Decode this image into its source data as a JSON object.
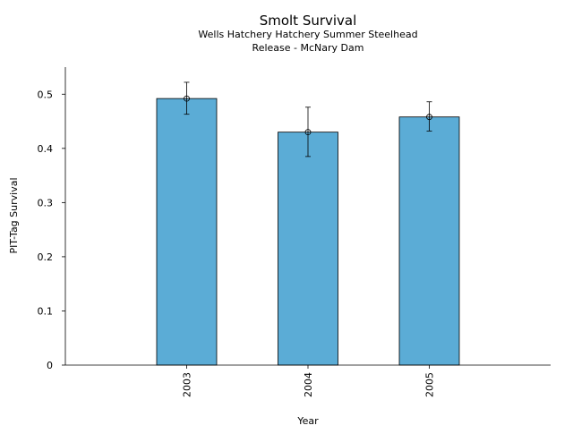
{
  "chart_data": {
    "type": "bar",
    "title": "Smolt Survival",
    "subtitle_lines": [
      "Wells Hatchery Hatchery Summer Steelhead",
      "Release - McNary Dam"
    ],
    "xlabel": "Year",
    "ylabel": "PIT-Tag Survival",
    "categories": [
      "2003",
      "2004",
      "2005"
    ],
    "values": [
      0.492,
      0.43,
      0.458
    ],
    "error_low": [
      0.463,
      0.385,
      0.432
    ],
    "error_high": [
      0.522,
      0.476,
      0.486
    ],
    "ylim": [
      0,
      0.55
    ],
    "yticks": [
      0,
      0.1,
      0.2,
      0.3,
      0.4,
      0.5
    ],
    "ytick_labels": [
      "0",
      "0.1",
      "0.2",
      "0.3",
      "0.4",
      "0.5"
    ],
    "grid": false,
    "bar_color": "#5bacd6",
    "edge_color": "#000000"
  }
}
